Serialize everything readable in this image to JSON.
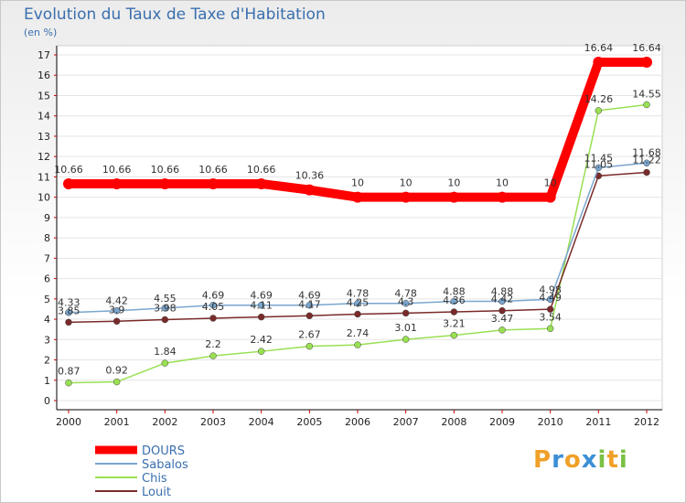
{
  "chart_data": {
    "type": "line",
    "title": "Evolution du Taux de Taxe d'Habitation",
    "ylabel": "(en %)",
    "xlabel": "",
    "ylim": [
      0,
      17
    ],
    "yticks": [
      "0",
      "1",
      "2",
      "3",
      "4",
      "5",
      "6",
      "7",
      "8",
      "9",
      "10",
      "11",
      "12",
      "13",
      "14",
      "15",
      "16",
      "17"
    ],
    "x": [
      "2000",
      "2001",
      "2002",
      "2003",
      "2004",
      "2005",
      "2006",
      "2007",
      "2008",
      "2009",
      "2010",
      "2011",
      "2012"
    ],
    "series": [
      {
        "name": "DOURS",
        "color": "#ff0000",
        "values": [
          10.66,
          10.66,
          10.66,
          10.66,
          10.66,
          10.36,
          10,
          10,
          10,
          10,
          10,
          16.64,
          16.64
        ],
        "labels": [
          "10.66",
          "10.66",
          "10.66",
          "10.66",
          "10.66",
          "10.36",
          "10",
          "10",
          "10",
          "10",
          "10",
          "16.64",
          "16.64"
        ]
      },
      {
        "name": "Sabalos",
        "color": "#7aa6cf",
        "values": [
          4.33,
          4.42,
          4.55,
          4.69,
          4.69,
          4.69,
          4.78,
          4.78,
          4.88,
          4.88,
          4.98,
          11.45,
          11.68
        ],
        "labels": [
          "4.33",
          "4.42",
          "4.55",
          "4.69",
          "4.69",
          "4.69",
          "4.78",
          "4.78",
          "4.88",
          "4.88",
          "4.98",
          "11.45",
          "11.68"
        ]
      },
      {
        "name": "Chis",
        "color": "#99e052",
        "values": [
          0.87,
          0.92,
          1.84,
          2.2,
          2.42,
          2.67,
          2.74,
          3.01,
          3.21,
          3.47,
          3.54,
          14.26,
          14.55
        ],
        "labels": [
          "0.87",
          "0.92",
          "1.84",
          "2.2",
          "2.42",
          "2.67",
          "2.74",
          "3.01",
          "3.21",
          "3.47",
          "3.54",
          "14.26",
          "14.55"
        ]
      },
      {
        "name": "Louit",
        "color": "#7a2a2a",
        "values": [
          3.85,
          3.9,
          3.98,
          4.05,
          4.11,
          4.17,
          4.25,
          4.3,
          4.36,
          4.42,
          4.49,
          11.05,
          11.22
        ],
        "labels": [
          "3.85",
          "3.9",
          "3.98",
          "4.05",
          "4.11",
          "4.17",
          "4.25",
          "4.3",
          "4.36",
          "4.42",
          "4.49",
          "11.05",
          "11.22"
        ]
      }
    ]
  },
  "branding": {
    "logo_letters": [
      "P",
      "r",
      "o",
      "x",
      "i",
      "t",
      "i"
    ],
    "logo_colors": [
      "#f0a028",
      "#3c8fd6",
      "#f0a028",
      "#3c8fd6",
      "#7ac143",
      "#f0a028",
      "#7ac143"
    ]
  }
}
